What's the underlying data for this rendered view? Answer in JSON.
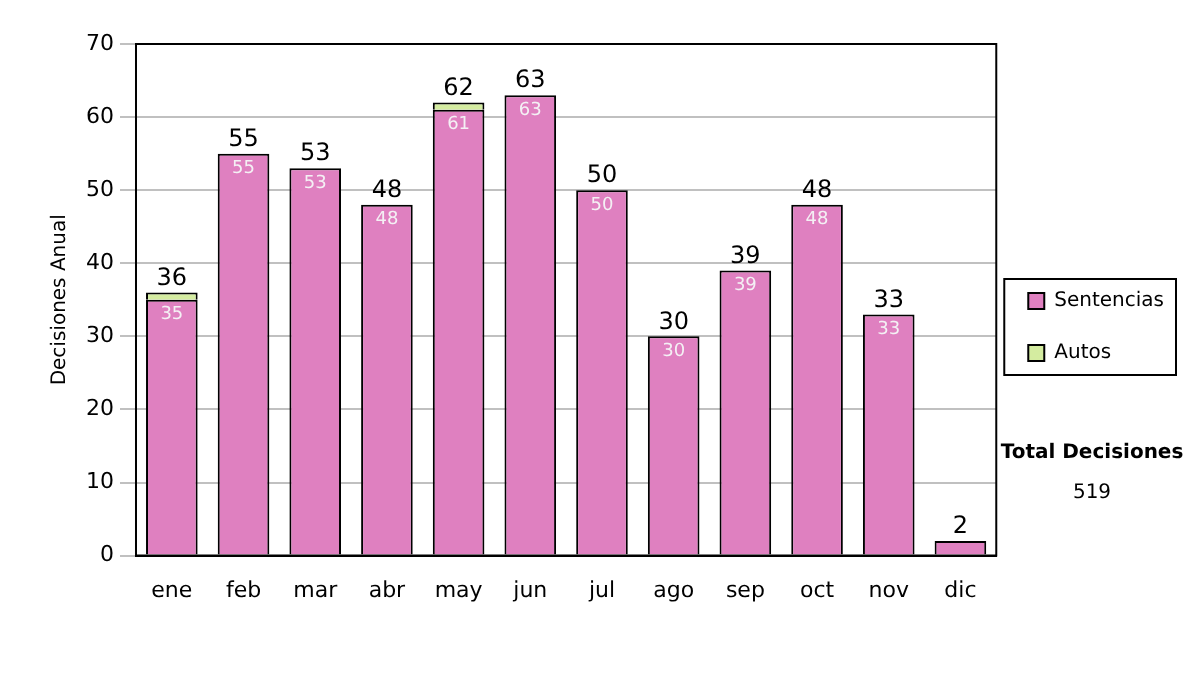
{
  "chart_data": {
    "type": "bar",
    "stacked": true,
    "ylabel": "Decisiones Anual",
    "categories": [
      "ene",
      "feb",
      "mar",
      "abr",
      "may",
      "jun",
      "jul",
      "ago",
      "sep",
      "oct",
      "nov",
      "dic"
    ],
    "series": [
      {
        "name": "Sentencias",
        "color": "#df80c0",
        "values": [
          35,
          55,
          53,
          48,
          61,
          63,
          50,
          30,
          39,
          48,
          33,
          2
        ],
        "value_labels": [
          "35",
          "55",
          "53",
          "48",
          "61",
          "63",
          "50",
          "30",
          "39",
          "48",
          "33",
          null
        ]
      },
      {
        "name": "Autos",
        "color": "#d4eca0",
        "values": [
          1,
          0,
          0,
          0,
          1,
          0,
          0,
          0,
          0,
          0,
          0,
          0
        ]
      }
    ],
    "totals": [
      "36",
      "55",
      "53",
      "48",
      "62",
      "63",
      "50",
      "30",
      "39",
      "48",
      "33",
      "2"
    ],
    "ylim": [
      0,
      70
    ],
    "yticks": [
      0,
      10,
      20,
      30,
      40,
      50,
      60,
      70
    ],
    "grid": "y",
    "legend": "right",
    "annotations": [
      "Total Decisiones",
      "519"
    ]
  }
}
